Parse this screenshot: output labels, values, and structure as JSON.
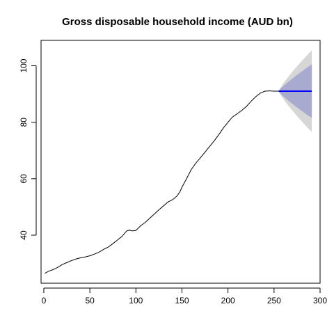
{
  "chart_data": {
    "type": "line",
    "title": "Gross disposable household income (AUD bn)",
    "xlabel": "",
    "ylabel": "",
    "xlim": [
      -3,
      300
    ],
    "ylim": [
      23,
      109
    ],
    "xticks": [
      0,
      50,
      100,
      150,
      200,
      250,
      300
    ],
    "yticks": [
      40,
      60,
      80,
      100
    ],
    "grid": false,
    "series": [
      {
        "values_x": [
          1,
          5,
          10,
          15,
          20,
          25,
          30,
          35,
          40,
          45,
          50,
          55,
          60,
          65,
          70,
          75,
          80,
          85,
          88,
          90,
          93,
          96,
          100,
          102,
          105,
          110,
          115,
          120,
          125,
          130,
          135,
          140,
          145,
          148,
          150,
          155,
          160,
          165,
          170,
          175,
          180,
          185,
          190,
          195,
          200,
          205,
          210,
          215,
          220,
          225,
          230,
          235,
          240,
          245,
          250,
          255
        ],
        "values_y": [
          26.5,
          27.2,
          27.8,
          28.6,
          29.6,
          30.3,
          31.0,
          31.6,
          32.0,
          32.3,
          32.7,
          33.3,
          34.0,
          35.0,
          35.8,
          37.0,
          38.3,
          39.6,
          40.8,
          41.5,
          41.8,
          41.5,
          41.7,
          42.3,
          43.3,
          44.5,
          46.0,
          47.5,
          49.0,
          50.4,
          51.8,
          52.6,
          54.0,
          55.5,
          57.0,
          60.0,
          63.2,
          65.5,
          67.4,
          69.4,
          71.4,
          73.4,
          75.6,
          78.0,
          80.0,
          81.9,
          83.0,
          84.2,
          85.6,
          87.4,
          89.0,
          90.3,
          91.0,
          91.1,
          91.0,
          91.0
        ]
      }
    ],
    "forecast": {
      "x": [
        255,
        291
      ],
      "mean": 91.0,
      "interval_80": {
        "lower_end": 81.5,
        "upper_end": 100.5
      },
      "interval_95": {
        "lower_end": 76.5,
        "upper_end": 105.5
      },
      "colors": {
        "mean": "#0000FF",
        "band_80": "#A8ABCF",
        "band_95": "#D6D6D6"
      }
    }
  }
}
